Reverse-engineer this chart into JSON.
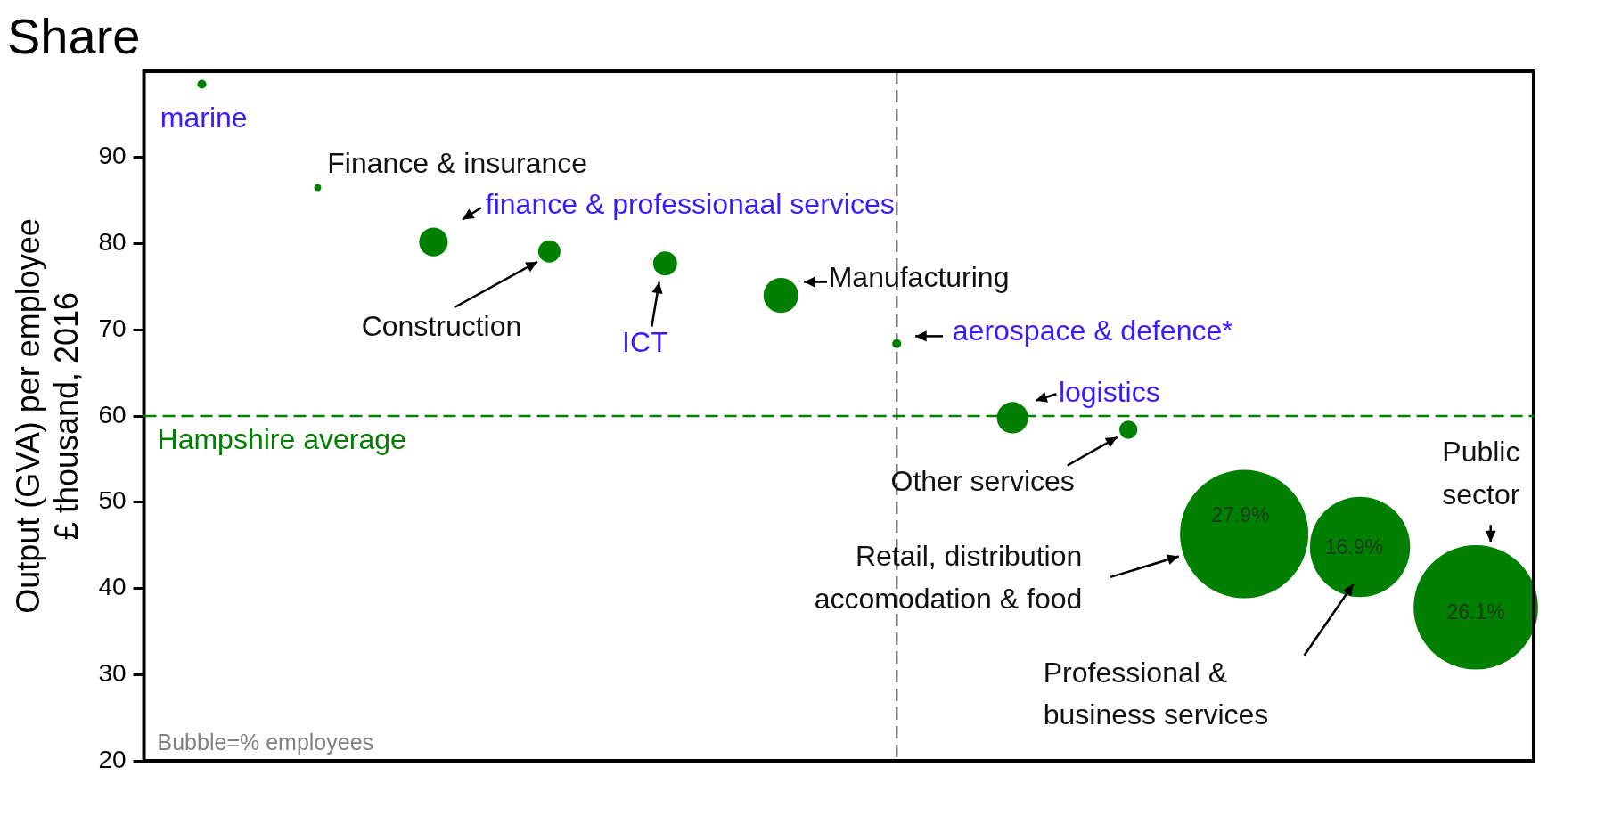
{
  "chart_data": {
    "type": "bubble",
    "title": "Share",
    "ylabel": "Output (GVA) per employee\n£ thousand, 2016",
    "categories": [
      null,
      null,
      null,
      null,
      null,
      null,
      null,
      null,
      null,
      null,
      null,
      null
    ],
    "series": [
      {
        "color": "#007f00",
        "values": [
          98.5,
          86.5,
          80.2,
          79.1,
          77.7,
          74,
          68.4,
          59.8,
          58.4,
          46.3,
          44.8,
          37.8
        ],
        "sizes": [
          0.005,
          0.003,
          0.05,
          0.03,
          0.035,
          0.074,
          0.005,
          0.06,
          0.02,
          1,
          0.61,
          0.94
        ]
      }
    ],
    "ylim": [
      20,
      100
    ],
    "yticks": [
      20,
      30,
      40,
      50,
      60,
      70,
      80,
      90
    ],
    "tick_labels": "y",
    "grid": false,
    "legend": false,
    "ref_lines": [
      {
        "axis": "y",
        "value": 60,
        "label": "Hampshire average",
        "color": "#007f00",
        "line_style": "dashed"
      }
    ],
    "annotations": [
      "marine",
      "Finance & insurance",
      "finance & professionaal services",
      "Construction",
      "ICT",
      "Manufacturing",
      "aerospace & defence*",
      "logistics",
      "Other services",
      "Retail, distribution\naccomodation & food",
      "Professional &\nbusiness services",
      "Public\nsector",
      "27.9%",
      "16.9%",
      "26.1%",
      "Bubble=% employees"
    ]
  }
}
